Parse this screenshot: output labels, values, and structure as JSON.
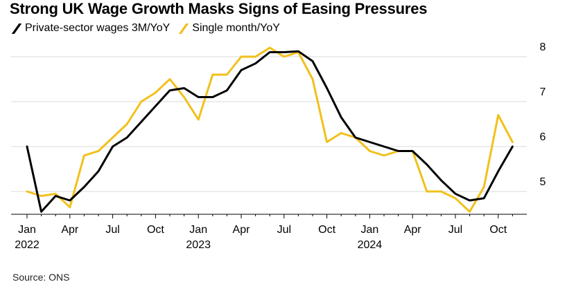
{
  "title": "Strong UK Wage Growth Masks Signs of Easing Pressures",
  "source": "Source: ONS",
  "colors": {
    "private": "#000000",
    "single": "#f2c01a",
    "grid": "#d9d9d9"
  },
  "legend": [
    {
      "label": "Private-sector wages 3M/YoY",
      "color": "#000000"
    },
    {
      "label": "Single month/YoY",
      "color": "#f2c01a"
    }
  ],
  "chart_data": {
    "type": "line",
    "title": "Strong UK Wage Growth Masks Signs of Easing Pressures",
    "x_labels": [
      "2022-01",
      "2022-02",
      "2022-03",
      "2022-04",
      "2022-05",
      "2022-06",
      "2022-07",
      "2022-08",
      "2022-09",
      "2022-10",
      "2022-11",
      "2022-12",
      "2023-01",
      "2023-02",
      "2023-03",
      "2023-04",
      "2023-05",
      "2023-06",
      "2023-07",
      "2023-08",
      "2023-09",
      "2023-10",
      "2023-11",
      "2023-12",
      "2024-01",
      "2024-02",
      "2024-03",
      "2024-04",
      "2024-05",
      "2024-06",
      "2024-07",
      "2024-08",
      "2024-09",
      "2024-10",
      "2024-11"
    ],
    "series": [
      {
        "name": "Private-sector wages 3M/YoY",
        "values": [
          6.0,
          4.55,
          4.9,
          4.8,
          5.1,
          5.45,
          6.0,
          6.2,
          6.55,
          6.9,
          7.25,
          7.3,
          7.1,
          7.1,
          7.25,
          7.7,
          7.85,
          8.1,
          8.1,
          8.12,
          7.9,
          7.3,
          6.65,
          6.2,
          6.1,
          6.0,
          5.9,
          5.9,
          5.6,
          5.25,
          4.95,
          4.8,
          4.85,
          5.45,
          6.0
        ]
      },
      {
        "name": "Single month/YoY",
        "values": [
          5.0,
          4.9,
          4.95,
          4.65,
          5.8,
          5.9,
          6.2,
          6.5,
          7.0,
          7.2,
          7.5,
          7.1,
          6.6,
          7.6,
          7.6,
          8.0,
          8.0,
          8.2,
          8.0,
          8.1,
          7.5,
          6.1,
          6.3,
          6.2,
          5.9,
          5.8,
          5.9,
          5.9,
          5.0,
          5.0,
          4.85,
          4.55,
          5.1,
          6.7,
          6.1
        ]
      }
    ],
    "ylim": [
      4.5,
      8.2
    ],
    "yticks": [
      5,
      6,
      7,
      8
    ],
    "xticks": [
      {
        "idx": 0,
        "label": "Jan",
        "year": "2022"
      },
      {
        "idx": 3,
        "label": "Apr"
      },
      {
        "idx": 6,
        "label": "Jul"
      },
      {
        "idx": 9,
        "label": "Oct"
      },
      {
        "idx": 12,
        "label": "Jan",
        "year": "2023"
      },
      {
        "idx": 15,
        "label": "Apr"
      },
      {
        "idx": 18,
        "label": "Jul"
      },
      {
        "idx": 21,
        "label": "Oct"
      },
      {
        "idx": 24,
        "label": "Jan",
        "year": "2024"
      },
      {
        "idx": 27,
        "label": "Apr"
      },
      {
        "idx": 30,
        "label": "Jul"
      },
      {
        "idx": 33,
        "label": "Oct"
      }
    ],
    "grid": true
  }
}
